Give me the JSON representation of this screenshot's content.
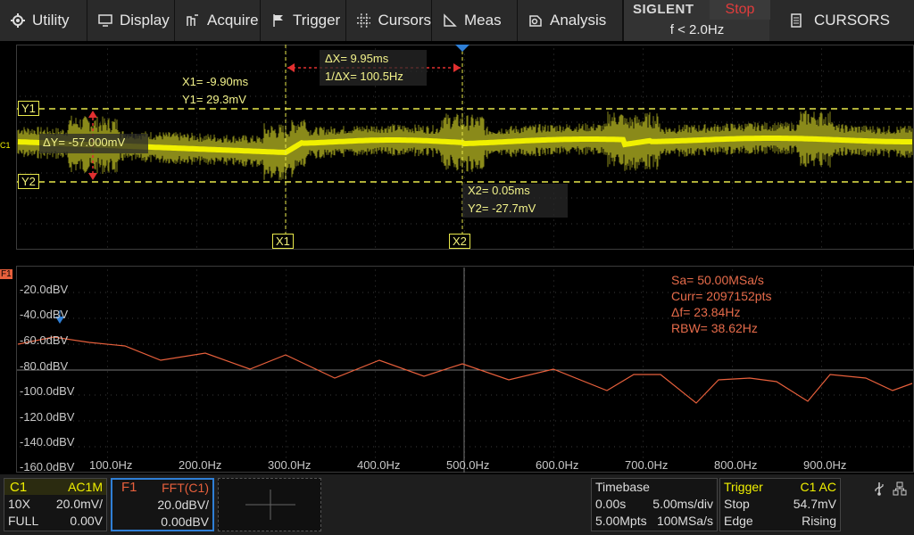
{
  "menu": {
    "utility": "Utility",
    "display": "Display",
    "acquire": "Acquire",
    "trigger": "Trigger",
    "cursors": "Cursors",
    "meas": "Meas",
    "analysis": "Analysis"
  },
  "brand": {
    "name": "SIGLENT",
    "status": "Stop",
    "trigger_freq": "f < 2.0Hz"
  },
  "side_menu": {
    "title": "CURSORS"
  },
  "cursors": {
    "delta_x": "ΔX= 9.95ms",
    "inv_delta_x": "1/ΔX= 100.5Hz",
    "x1": "X1= -9.90ms",
    "y1": "Y1= 29.3mV",
    "delta_y": "ΔY= -57.000mV",
    "x2": "X2= 0.05ms",
    "y2": "Y2= -27.7mV",
    "y1_tag": "Y1",
    "y2_tag": "Y2",
    "x1_tag": "X1",
    "x2_tag": "X2",
    "c1_marker": "C1"
  },
  "fft": {
    "marker": "F1",
    "sa": "Sa=  50.00MSa/s",
    "curr": "Curr= 2097152pts",
    "df": "Δf=  23.84Hz",
    "rbw": "RBW=  38.62Hz",
    "db_labels": [
      "-20.0dBV",
      "-40.0dBV",
      "-60.0dBV",
      "-80.0dBV",
      "-100.0dBV",
      "-120.0dBV",
      "-140.0dBV",
      "-160.0dBV"
    ],
    "hz_labels": [
      "100.0Hz",
      "200.0Hz",
      "300.0Hz",
      "400.0Hz",
      "500.0Hz",
      "600.0Hz",
      "700.0Hz",
      "800.0Hz",
      "900.0Hz"
    ]
  },
  "status": {
    "c1": {
      "name": "C1",
      "coupling": "AC1M",
      "probe": "10X",
      "scale": "20.0mV/",
      "bw": "FULL",
      "offset": "0.00V"
    },
    "f1": {
      "name": "F1",
      "func": "FFT(C1)",
      "scale": "20.0dBV/",
      "offset": "0.00dBV"
    },
    "timebase": {
      "title": "Timebase",
      "delay": "0.00s",
      "scale": "5.00ms/div",
      "points": "5.00Mpts",
      "rate": "100MSa/s"
    },
    "trigger": {
      "title": "Trigger",
      "source": "C1 AC",
      "mode": "Stop",
      "level": "54.7mV",
      "type": "Edge",
      "slope": "Rising"
    }
  },
  "colors": {
    "ch1": "#f0f000",
    "fft": "#e8603c",
    "accent": "#2f7fd6"
  }
}
